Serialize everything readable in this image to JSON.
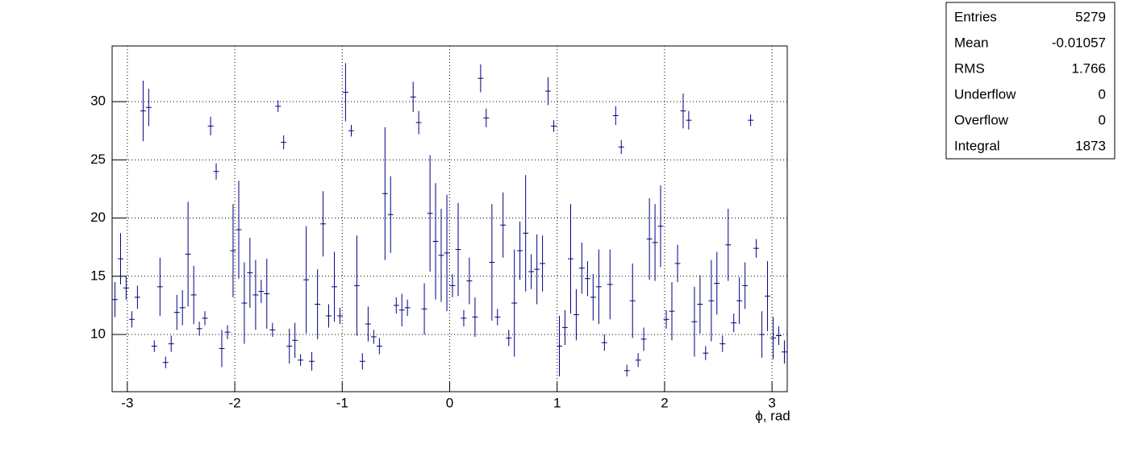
{
  "chart_data": {
    "type": "errorbar",
    "x_label": "ϕ, rad",
    "color": "#000080",
    "xlim": [
      -3.1416,
      3.1416
    ],
    "xticks": [
      -3,
      -2,
      -1,
      0,
      1,
      2,
      3
    ],
    "ylim": [
      5.09,
      34.78
    ],
    "yticks": [
      10,
      15,
      20,
      25,
      30
    ],
    "grid": true,
    "bin_width": 0.05236,
    "x": [
      -3.115,
      -3.063,
      -3.011,
      -2.958,
      -2.906,
      -2.853,
      -2.801,
      -2.749,
      -2.696,
      -2.644,
      -2.592,
      -2.539,
      -2.487,
      -2.435,
      -2.382,
      -2.33,
      -2.278,
      -2.225,
      -2.173,
      -2.121,
      -2.068,
      -2.016,
      -1.963,
      -1.911,
      -1.859,
      -1.806,
      -1.754,
      -1.702,
      -1.649,
      -1.597,
      -1.545,
      -1.492,
      -1.44,
      -1.388,
      -1.335,
      -1.283,
      -1.23,
      -1.178,
      -1.126,
      -1.073,
      -1.021,
      -0.969,
      -0.916,
      -0.864,
      -0.812,
      -0.759,
      -0.707,
      -0.654,
      -0.602,
      -0.55,
      -0.497,
      -0.445,
      -0.393,
      -0.34,
      -0.288,
      -0.236,
      -0.183,
      -0.131,
      -0.079,
      -0.026,
      0.026,
      0.079,
      0.131,
      0.183,
      0.236,
      0.288,
      0.34,
      0.393,
      0.445,
      0.497,
      0.55,
      0.602,
      0.654,
      0.707,
      0.759,
      0.812,
      0.864,
      0.916,
      0.969,
      1.021,
      1.073,
      1.126,
      1.178,
      1.23,
      1.283,
      1.335,
      1.388,
      1.44,
      1.492,
      1.545,
      1.597,
      1.649,
      1.702,
      1.754,
      1.806,
      1.859,
      1.911,
      1.963,
      2.016,
      2.068,
      2.121,
      2.173,
      2.225,
      2.278,
      2.33,
      2.382,
      2.435,
      2.487,
      2.539,
      2.592,
      2.644,
      2.696,
      2.749,
      2.801,
      2.853,
      2.906,
      2.958,
      3.011,
      3.063,
      3.115
    ],
    "values": [
      13,
      16.5,
      14,
      11.3,
      13.2,
      29.2,
      29.5,
      9,
      14.1,
      7.6,
      9.2,
      11.9,
      12.3,
      16.9,
      13.4,
      10.5,
      11.4,
      27.9,
      24,
      8.8,
      10.2,
      17.2,
      19,
      12.7,
      15.3,
      13.4,
      13.7,
      13.5,
      10.4,
      29.6,
      26.5,
      9,
      9.5,
      7.8,
      14.7,
      7.7,
      12.6,
      19.5,
      11.6,
      14.1,
      11.6,
      30.8,
      27.5,
      14.2,
      7.7,
      10.9,
      9.8,
      9,
      22.1,
      20.3,
      12.5,
      12.1,
      12.3,
      30.4,
      28.2,
      12.2,
      20.4,
      18,
      16.8,
      17,
      14.2,
      17.3,
      11.4,
      14.6,
      11.5,
      32,
      28.6,
      16.2,
      11.5,
      19.4,
      9.7,
      12.7,
      17.2,
      18.7,
      15.4,
      15.6,
      16.1,
      30.9,
      27.9,
      9,
      10.6,
      16.5,
      11.7,
      15.7,
      14.8,
      13.2,
      14.1,
      9.3,
      14.3,
      28.8,
      26.1,
      6.9,
      12.9,
      7.8,
      9.6,
      18.2,
      17.9,
      19.3,
      11.3,
      12,
      16.1,
      29.2,
      28.4,
      11.1,
      12.6,
      8.4,
      12.9,
      14.4,
      9.2,
      17.7,
      11,
      12.9,
      14.2,
      28.4,
      17.4,
      10,
      13.3,
      9.7,
      9.9,
      8.5
    ],
    "errors": [
      1.5,
      2.2,
      1,
      0.7,
      1,
      2.6,
      1.6,
      0.5,
      2.5,
      0.5,
      0.7,
      1.5,
      1.5,
      4.5,
      2.5,
      0.6,
      0.6,
      0.8,
      0.7,
      1.6,
      0.6,
      4,
      4.2,
      3.5,
      3,
      3,
      1,
      3,
      0.6,
      0.5,
      0.6,
      1.5,
      1.5,
      0.5,
      4.6,
      0.8,
      3,
      2.8,
      1,
      3,
      0.7,
      2.5,
      0.5,
      4.3,
      0.7,
      1.5,
      0.6,
      0.7,
      5.7,
      3.3,
      0.7,
      1.4,
      0.7,
      1.3,
      1,
      2.2,
      5,
      5,
      4,
      5,
      1,
      4,
      0.7,
      2,
      1.7,
      1.2,
      0.8,
      5,
      0.7,
      2.8,
      0.7,
      4.6,
      2.5,
      5,
      1.5,
      3,
      2.4,
      1.2,
      0.5,
      2.6,
      1.5,
      4.7,
      2.2,
      2.2,
      1.5,
      2,
      3.2,
      0.7,
      3,
      0.8,
      0.6,
      0.5,
      3.2,
      0.6,
      1,
      3.5,
      3.3,
      3.5,
      0.8,
      2.5,
      1.6,
      1.5,
      0.8,
      3,
      2.5,
      0.6,
      3.5,
      2.7,
      0.7,
      3.1,
      0.8,
      2,
      2,
      0.5,
      0.8,
      2,
      3,
      1.8,
      0.8,
      1
    ],
    "stats": [
      {
        "label": "Entries",
        "value": 5279
      },
      {
        "label": "Mean",
        "value": -0.01057
      },
      {
        "label": "RMS",
        "value": 1.766
      },
      {
        "label": "Underflow",
        "value": 0
      },
      {
        "label": "Overflow",
        "value": 0
      },
      {
        "label": "Integral",
        "value": 1873
      }
    ]
  }
}
